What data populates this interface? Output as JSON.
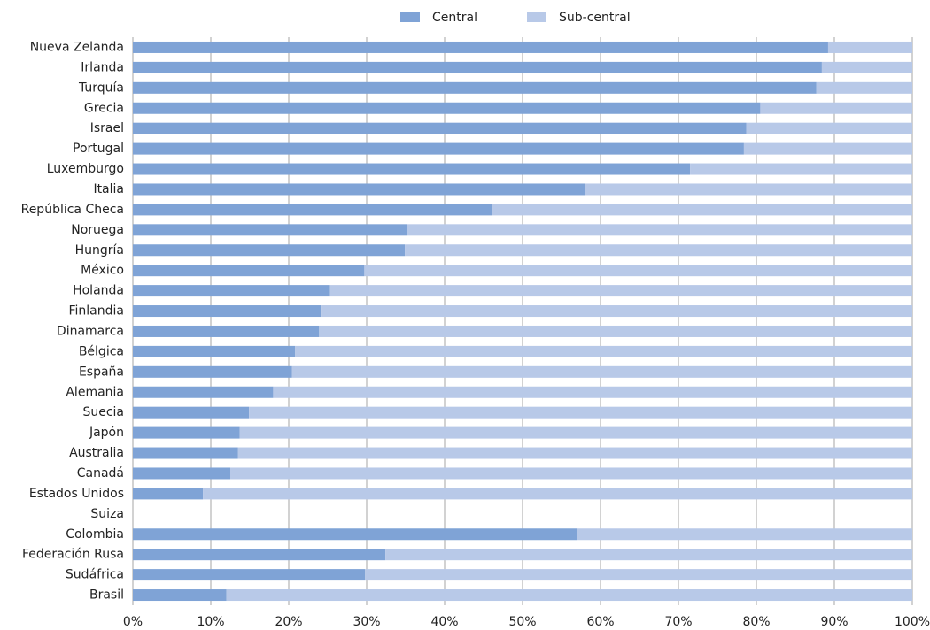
{
  "chart_data": {
    "type": "stacked-hbar",
    "categories": [
      "Nueva Zelanda",
      "Irlanda",
      "Turquía",
      "Grecia",
      "Israel",
      "Portugal",
      "Luxemburgo",
      "Italia",
      "República Checa",
      "Noruega",
      "Hungría",
      "México",
      "Holanda",
      "Finlandia",
      "Dinamarca",
      "Bélgica",
      "España",
      "Alemania",
      "Suecia",
      "Japón",
      "Australia",
      "Canadá",
      "Estados Unidos",
      "Suiza",
      "Colombia",
      "Federación Rusa",
      "Sudáfrica",
      "Brasil"
    ],
    "series": [
      {
        "name": "Central",
        "color": "#7fa3d6",
        "values": [
          89.2,
          88.4,
          87.7,
          80.5,
          78.7,
          78.4,
          71.5,
          58.0,
          46.1,
          35.2,
          34.9,
          29.7,
          25.3,
          24.1,
          23.9,
          20.8,
          20.4,
          18.0,
          14.9,
          13.7,
          13.5,
          12.5,
          9.0,
          null,
          57.0,
          32.4,
          29.8,
          12.0
        ]
      },
      {
        "name": "Sub-central",
        "color": "#b8c9e8",
        "values": [
          10.8,
          11.6,
          12.3,
          19.5,
          21.3,
          21.6,
          28.5,
          42.0,
          53.9,
          64.8,
          65.1,
          70.3,
          74.7,
          75.9,
          76.1,
          79.2,
          79.6,
          82.0,
          85.1,
          86.3,
          86.5,
          87.5,
          91.0,
          null,
          43.0,
          67.6,
          70.2,
          88.0
        ]
      }
    ],
    "xlim": [
      0,
      100
    ],
    "xticks": [
      {
        "value": 0,
        "label": "0%"
      },
      {
        "value": 10,
        "label": "10%"
      },
      {
        "value": 20,
        "label": "20%"
      },
      {
        "value": 30,
        "label": "30%"
      },
      {
        "value": 40,
        "label": "40%"
      },
      {
        "value": 50,
        "label": "50%"
      },
      {
        "value": 60,
        "label": "60%"
      },
      {
        "value": 70,
        "label": "70%"
      },
      {
        "value": 80,
        "label": "80%"
      },
      {
        "value": 90,
        "label": "90%"
      },
      {
        "value": 100,
        "label": "100%"
      }
    ],
    "grid": true,
    "legend": "top"
  }
}
